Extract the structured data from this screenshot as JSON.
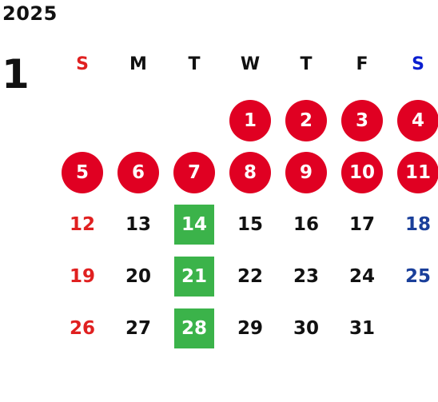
{
  "calendar": {
    "year": "2025",
    "month": "1",
    "weekdays": [
      "S",
      "M",
      "T",
      "W",
      "T",
      "F",
      "S"
    ],
    "colors": {
      "sunday": "#e02020",
      "saturday": "#1a3f9a",
      "weekday": "#111111",
      "holiday_circle": "#e00022",
      "event_square": "#3bb34a"
    },
    "weeks": [
      [
        null,
        null,
        null,
        "1",
        "2",
        "3",
        "4"
      ],
      [
        "5",
        "6",
        "7",
        "8",
        "9",
        "10",
        "11"
      ],
      [
        "12",
        "13",
        "14",
        "15",
        "16",
        "17",
        "18"
      ],
      [
        "19",
        "20",
        "21",
        "22",
        "23",
        "24",
        "25"
      ],
      [
        "26",
        "27",
        "28",
        "29",
        "30",
        "31",
        null
      ]
    ],
    "circled_days": [
      "1",
      "2",
      "3",
      "4",
      "5",
      "6",
      "7",
      "8",
      "9",
      "10",
      "11"
    ],
    "squared_days": [
      "14",
      "21",
      "28"
    ]
  }
}
